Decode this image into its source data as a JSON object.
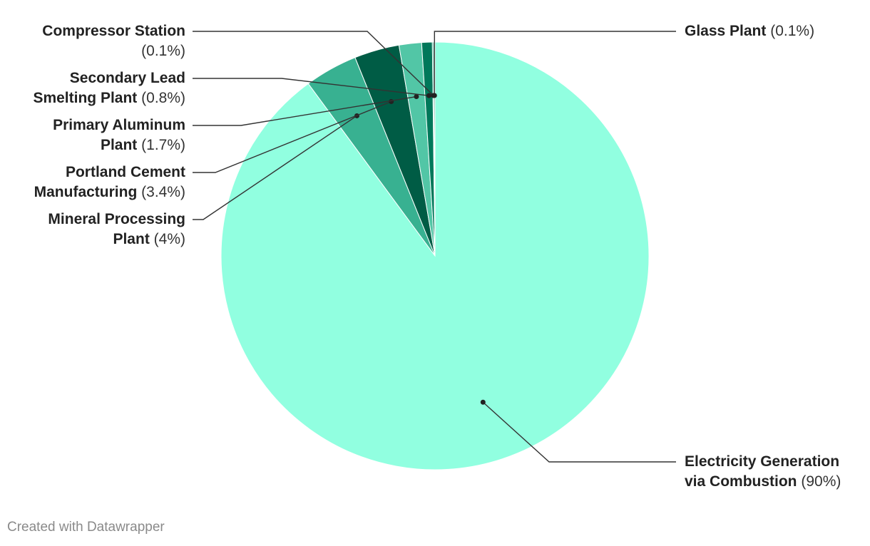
{
  "chart_data": {
    "type": "pie",
    "slices": [
      {
        "label_lines": [
          "Electricity Generation",
          "via Combustion"
        ],
        "value": 90,
        "value_label": "(90%)",
        "color": "#91FFE0"
      },
      {
        "label_lines": [
          "Mineral Processing",
          "Plant"
        ],
        "value": 4,
        "value_label": "(4%)",
        "color": "#38B191"
      },
      {
        "label_lines": [
          "Portland Cement",
          "Manufacturing"
        ],
        "value": 3.4,
        "value_label": "(3.4%)",
        "color": "#005C45"
      },
      {
        "label_lines": [
          "Primary Aluminum",
          "Plant"
        ],
        "value": 1.7,
        "value_label": "(1.7%)",
        "color": "#52C6A6"
      },
      {
        "label_lines": [
          "Secondary Lead",
          "Smelting Plant"
        ],
        "value": 0.8,
        "value_label": "(0.8%)",
        "color": "#00785A"
      },
      {
        "label_lines": [
          "Compressor Station"
        ],
        "value": 0.1,
        "value_label": "(0.1%)",
        "color": "#1E9E7E"
      },
      {
        "label_lines": [
          "Glass Plant"
        ],
        "value": 0.1,
        "value_label": "(0.1%)",
        "color": "#0A6B52"
      }
    ]
  },
  "footer": "Created with Datawrapper"
}
